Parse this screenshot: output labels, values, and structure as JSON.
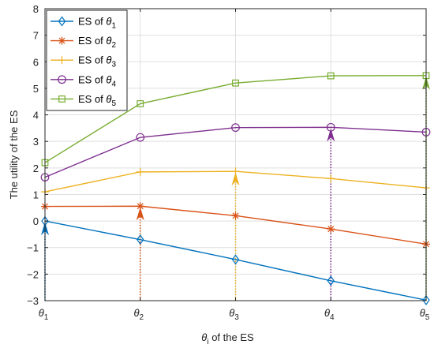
{
  "chart_data": {
    "type": "line",
    "categories": [
      "θ1",
      "θ2",
      "θ3",
      "θ4",
      "θ5"
    ],
    "category_sub": [
      "1",
      "2",
      "3",
      "4",
      "5"
    ],
    "x_positions": [
      1,
      2,
      3,
      4,
      5
    ],
    "xlabel": "θ_i of the ES",
    "xlabel_parts": {
      "main": "θ",
      "sub": "i",
      "rest": " of the ES"
    },
    "ylabel": "The utility of the ES",
    "ylim": [
      -3,
      8
    ],
    "yticks": [
      -3,
      -2,
      -1,
      0,
      1,
      2,
      3,
      4,
      5,
      6,
      7,
      8
    ],
    "grid": true,
    "legend_position": "top-left",
    "series": [
      {
        "name": "ES of θ1",
        "name_main": "ES of θ",
        "name_sub": "1",
        "color": "#0072BD",
        "marker": "diamond",
        "values": [
          0.0,
          -0.7,
          -1.45,
          -2.25,
          -2.98
        ]
      },
      {
        "name": "ES of θ2",
        "name_main": "ES of θ",
        "name_sub": "2",
        "color": "#D95319",
        "marker": "asterisk",
        "values": [
          0.55,
          0.56,
          0.2,
          -0.3,
          -0.87
        ]
      },
      {
        "name": "ES of θ3",
        "name_main": "ES of θ",
        "name_sub": "3",
        "color": "#EDB120",
        "marker": "plus",
        "values": [
          1.1,
          1.85,
          1.87,
          1.6,
          1.25
        ]
      },
      {
        "name": "ES of θ4",
        "name_main": "ES of θ",
        "name_sub": "4",
        "color": "#7E2F8E",
        "marker": "circle",
        "values": [
          1.65,
          3.15,
          3.52,
          3.53,
          3.35
        ]
      },
      {
        "name": "ES of θ5",
        "name_main": "ES of θ",
        "name_sub": "5",
        "color": "#77AC30",
        "marker": "square",
        "values": [
          2.2,
          4.42,
          5.2,
          5.47,
          5.48
        ]
      }
    ],
    "arrows": [
      {
        "x": 1,
        "series": 0,
        "from_y": -3,
        "to_y": 0.0
      },
      {
        "x": 2,
        "series": 1,
        "from_y": -3,
        "to_y": 0.56
      },
      {
        "x": 3,
        "series": 2,
        "from_y": -3,
        "to_y": 1.87
      },
      {
        "x": 4,
        "series": 3,
        "from_y": -3,
        "to_y": 3.53
      },
      {
        "x": 5,
        "series": 4,
        "from_y": -3,
        "to_y": 5.48
      }
    ]
  }
}
